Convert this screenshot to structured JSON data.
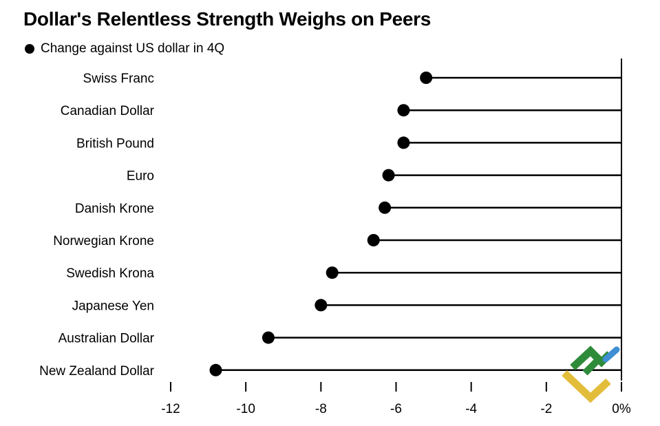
{
  "chart_data": {
    "type": "lollipop",
    "title": "Dollar's Relentless Strength Weighs on Peers",
    "legend": "Change against US dollar in 4Q",
    "xlim": [
      -12,
      0
    ],
    "ticks": [
      -12,
      -10,
      -8,
      -6,
      -4,
      -2,
      0
    ],
    "tick_labels": [
      "-12",
      "-10",
      "-8",
      "-6",
      "-4",
      "-2",
      "0%"
    ],
    "categories": [
      "Swiss Franc",
      "Canadian Dollar",
      "British Pound",
      "Euro",
      "Danish Krone",
      "Norwegian Krone",
      "Swedish Krona",
      "Japanese Yen",
      "Australian Dollar",
      "New Zealand Dollar"
    ],
    "values": [
      -5.2,
      -5.8,
      -5.8,
      -6.2,
      -6.3,
      -6.6,
      -7.7,
      -8.0,
      -9.4,
      -10.8
    ]
  },
  "colors": {
    "text": "#000000",
    "line": "#000000",
    "logo_green": "#2e8b3a",
    "logo_yellow": "#e2bd3a",
    "logo_blue": "#3f8fd2"
  }
}
